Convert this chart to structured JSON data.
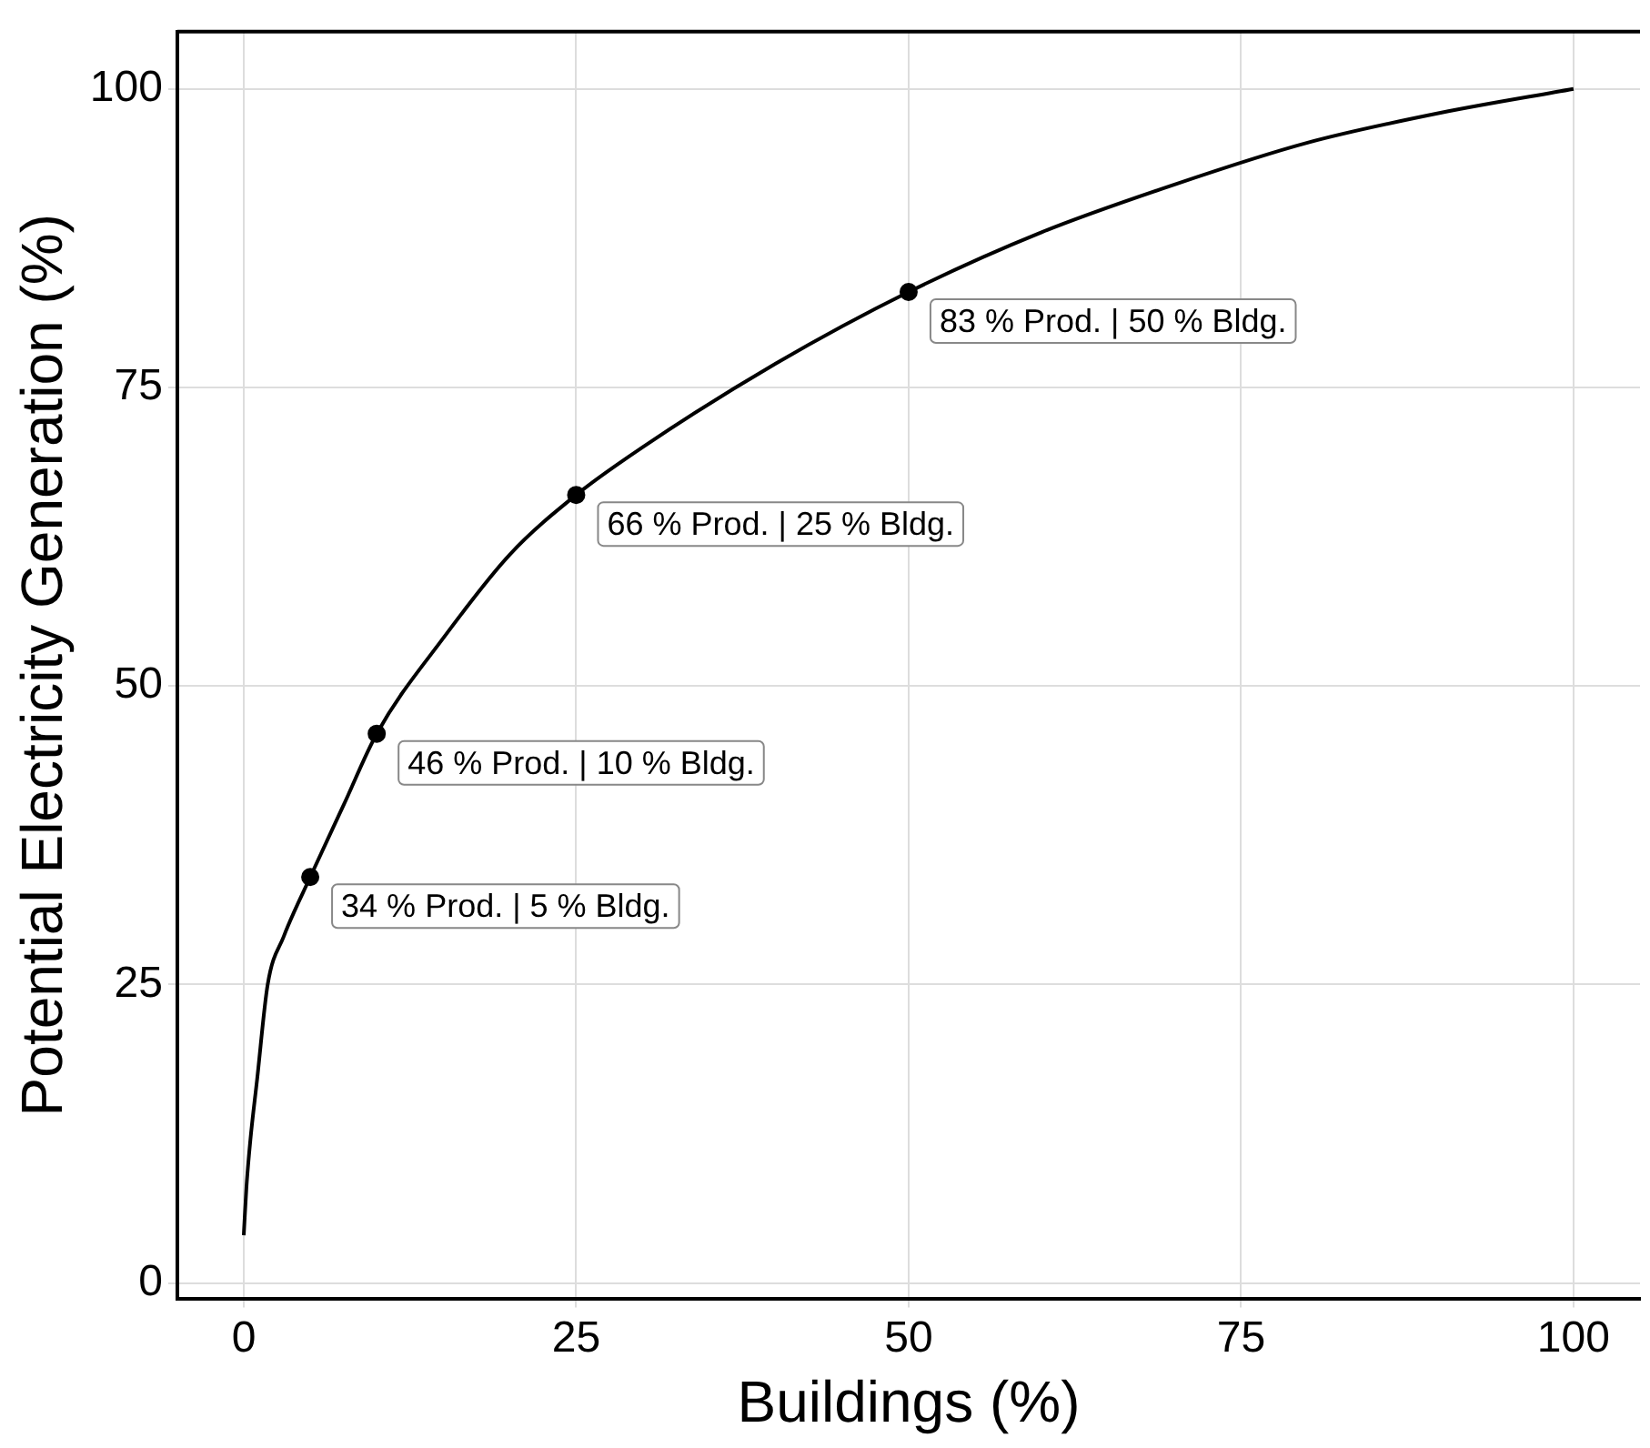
{
  "chart_data": {
    "type": "line",
    "xlabel": "Buildings (%)",
    "ylabel": "Potential Electricity Generation (%)",
    "xlim": [
      -5,
      105
    ],
    "ylim": [
      -1.3,
      104.8
    ],
    "xticks": [
      0,
      25,
      50,
      75,
      100
    ],
    "yticks": [
      0,
      25,
      50,
      75,
      100
    ],
    "grid": true,
    "legend": false,
    "series": [
      {
        "type": "line",
        "color": "#000000",
        "marker": "none",
        "x": [
          0,
          0.2,
          0.5,
          1,
          1.8,
          3,
          5,
          7.5,
          10,
          15,
          20,
          25,
          30,
          40,
          50,
          60,
          70,
          80,
          90,
          100
        ],
        "values": [
          4,
          8,
          12,
          17,
          25,
          29,
          34,
          40,
          46,
          54,
          61,
          66,
          70,
          77,
          83,
          88,
          92,
          95.5,
          98,
          100
        ]
      },
      {
        "type": "scatter",
        "color": "#000000",
        "marker": "circle",
        "x": [
          5,
          10,
          25,
          50
        ],
        "values": [
          34,
          46,
          66,
          83
        ],
        "value_labels": [
          "34 % Prod. | 5 % Bldg.",
          "46 % Prod. | 10 % Bldg.",
          "66 % Prod. | 25 % Bldg.",
          "83 % Prod. | 50 % Bldg."
        ]
      }
    ]
  }
}
